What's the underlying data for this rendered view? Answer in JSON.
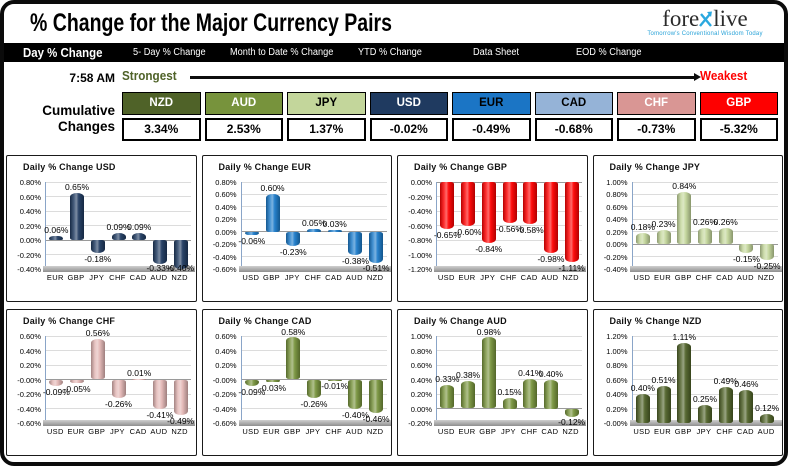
{
  "header": {
    "title": "% Change for the Major Currency Pairs",
    "logo": {
      "part1": "fore",
      "part2": "live",
      "tagline": "Tomorrow's Conventional Wisdom Today",
      "x_color": "#2aa8df"
    }
  },
  "tabs": [
    {
      "label": "Day % Change",
      "active": true
    },
    {
      "label": "5- Day % Change",
      "active": false
    },
    {
      "label": "Month to Date % Change",
      "active": false
    },
    {
      "label": "YTD % Change",
      "active": false
    },
    {
      "label": "Data Sheet",
      "active": false
    },
    {
      "label": "EOD % Change",
      "active": false
    }
  ],
  "summary": {
    "time": "7:58 AM",
    "strongest_label": "Strongest",
    "weakest_label": "Weakest",
    "row_label_line1": "Cumulative",
    "row_label_line2": "Changes",
    "strongest_color": "#4f6228",
    "weakest_color": "#fe0000",
    "currencies": [
      {
        "code": "NZD",
        "value": "3.34%",
        "bg": "#4f6228",
        "fg": "#ffffff"
      },
      {
        "code": "AUD",
        "value": "2.53%",
        "bg": "#77933c",
        "fg": "#ffffff"
      },
      {
        "code": "JPY",
        "value": "1.37%",
        "bg": "#c3d69b",
        "fg": "#000000"
      },
      {
        "code": "USD",
        "value": "-0.02%",
        "bg": "#1f3a60",
        "fg": "#ffffff"
      },
      {
        "code": "EUR",
        "value": "-0.49%",
        "bg": "#1b75c5",
        "fg": "#000000"
      },
      {
        "code": "CAD",
        "value": "-0.68%",
        "bg": "#95b3d7",
        "fg": "#000000"
      },
      {
        "code": "CHF",
        "value": "-0.73%",
        "bg": "#d99694",
        "fg": "#ffffff"
      },
      {
        "code": "GBP",
        "value": "-5.32%",
        "bg": "#fe0000",
        "fg": "#ffffff"
      }
    ]
  },
  "chart_data": [
    {
      "type": "bar",
      "title": "Daily % Change USD",
      "bar_color": "#1f3a60",
      "categories": [
        "EUR",
        "GBP",
        "JPY",
        "CHF",
        "CAD",
        "AUD",
        "NZD"
      ],
      "values": [
        0.06,
        0.65,
        -0.18,
        0.09,
        0.09,
        -0.33,
        -0.4
      ],
      "ylim": [
        -0.4,
        0.8
      ],
      "ytick_step": 0.2,
      "grid": true,
      "legend": "none"
    },
    {
      "type": "bar",
      "title": "Daily % Change EUR",
      "bar_color": "#1b7ac9",
      "categories": [
        "USD",
        "GBP",
        "JPY",
        "CHF",
        "CAD",
        "AUD",
        "NZD"
      ],
      "values": [
        -0.06,
        0.6,
        -0.23,
        0.05,
        0.03,
        -0.38,
        -0.51
      ],
      "ylim": [
        -0.6,
        0.8
      ],
      "ytick_step": 0.2,
      "grid": true,
      "legend": "none"
    },
    {
      "type": "bar",
      "title": "Daily % Change GBP",
      "bar_color": "#fe0000",
      "categories": [
        "USD",
        "EUR",
        "JPY",
        "CHF",
        "CAD",
        "AUD",
        "NZD"
      ],
      "values": [
        -0.65,
        -0.6,
        -0.84,
        -0.56,
        -0.58,
        -0.98,
        -1.11
      ],
      "ylim": [
        -1.2,
        0.0
      ],
      "ytick_step": 0.2,
      "grid": true,
      "legend": "none"
    },
    {
      "type": "bar",
      "title": "Daily % Change JPY",
      "bar_color": "#c3d69b",
      "categories": [
        "USD",
        "EUR",
        "GBP",
        "CHF",
        "CAD",
        "AUD",
        "NZD"
      ],
      "values": [
        0.18,
        0.23,
        0.84,
        0.26,
        0.26,
        -0.15,
        -0.25
      ],
      "ylim": [
        -0.4,
        1.0
      ],
      "ytick_step": 0.2,
      "grid": true,
      "legend": "none"
    },
    {
      "type": "bar",
      "title": "Daily % Change CHF",
      "bar_color": "#e3b7b5",
      "categories": [
        "USD",
        "EUR",
        "GBP",
        "JPY",
        "CAD",
        "AUD",
        "NZD"
      ],
      "values": [
        -0.09,
        -0.05,
        0.56,
        -0.26,
        0.01,
        -0.41,
        -0.49
      ],
      "ylim": [
        -0.6,
        0.6
      ],
      "ytick_step": 0.2,
      "grid": true,
      "legend": "none"
    },
    {
      "type": "bar",
      "title": "Daily % Change CAD",
      "bar_color": "#77933c",
      "categories": [
        "USD",
        "EUR",
        "GBP",
        "JPY",
        "CHF",
        "AUD",
        "NZD"
      ],
      "values": [
        -0.09,
        -0.03,
        0.58,
        -0.26,
        -0.01,
        -0.4,
        -0.46
      ],
      "ylim": [
        -0.6,
        0.6
      ],
      "ytick_step": 0.2,
      "grid": true,
      "legend": "none"
    },
    {
      "type": "bar",
      "title": "Daily % Change AUD",
      "bar_color": "#77933c",
      "categories": [
        "USD",
        "EUR",
        "GBP",
        "JPY",
        "CHF",
        "CAD",
        "NZD"
      ],
      "values": [
        0.33,
        0.38,
        0.98,
        0.15,
        0.41,
        0.4,
        -0.12
      ],
      "ylim": [
        -0.2,
        1.0
      ],
      "ytick_step": 0.2,
      "grid": true,
      "legend": "none"
    },
    {
      "type": "bar",
      "title": "Daily % Change NZD",
      "bar_color": "#4f6228",
      "categories": [
        "USD",
        "EUR",
        "GBP",
        "JPY",
        "CHF",
        "CAD",
        "AUD"
      ],
      "values": [
        0.4,
        0.51,
        1.11,
        0.25,
        0.49,
        0.46,
        0.12
      ],
      "ylim": [
        0.0,
        1.2
      ],
      "ytick_step": 0.2,
      "grid": true,
      "legend": "none"
    }
  ]
}
